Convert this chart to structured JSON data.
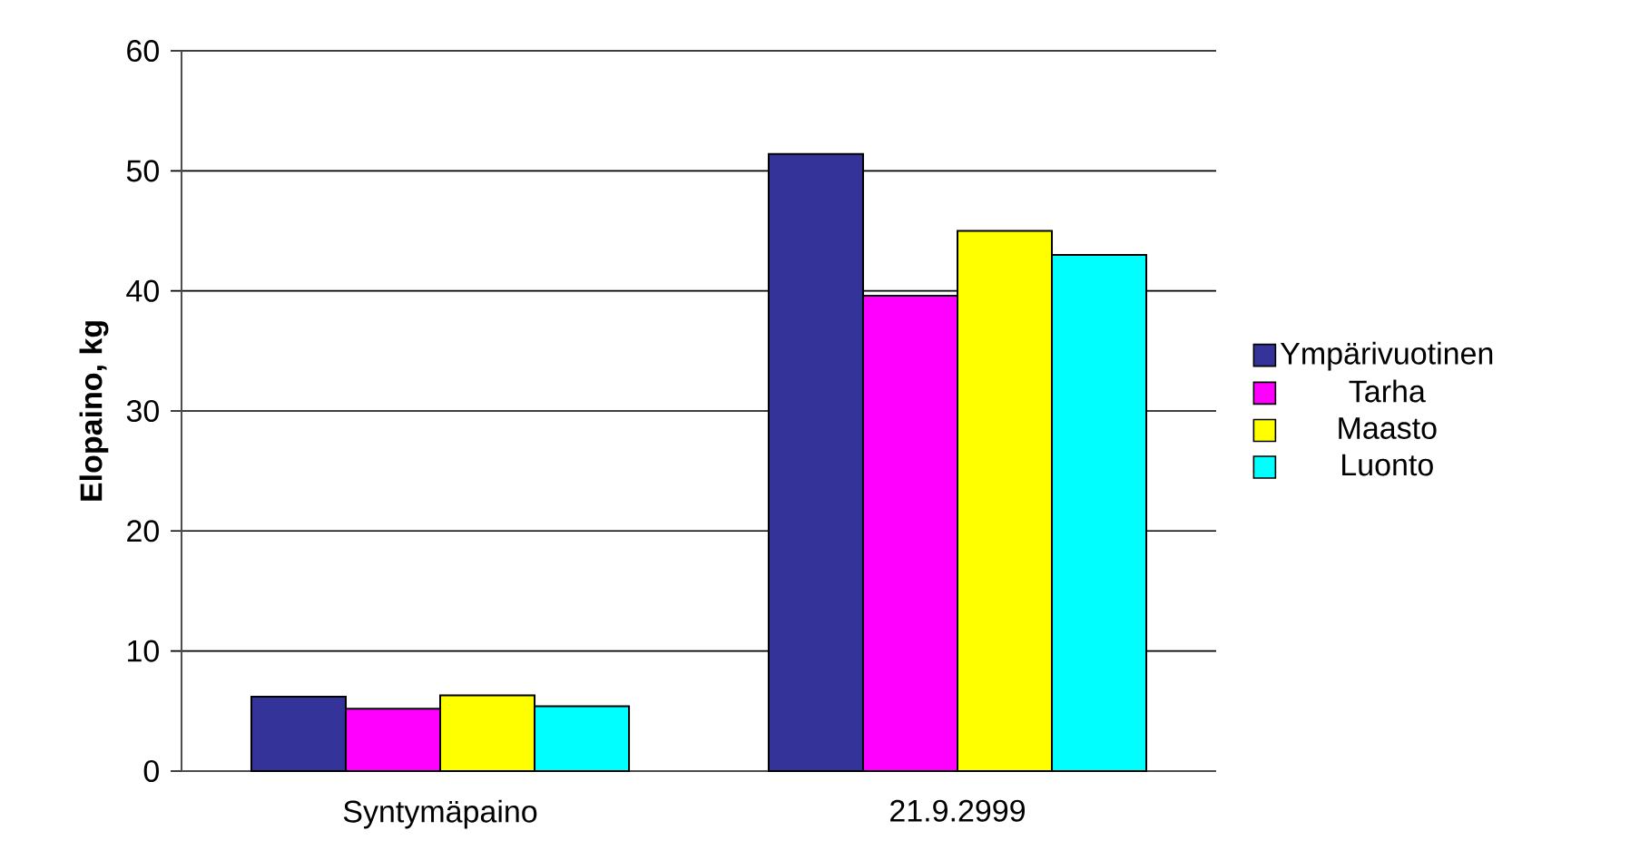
{
  "chart_data": {
    "type": "bar",
    "ylabel": "**Elopaino, kg**",
    "categories": [
      "Syntymäpaino",
      "21.9.2999"
    ],
    "series": [
      {
        "name": "Ympärivuotinen",
        "color": "#333399",
        "values": [
          6.2,
          51.4
        ]
      },
      {
        "name": "Tarha",
        "color": "#ff00ff",
        "values": [
          5.2,
          39.6
        ]
      },
      {
        "name": "Maasto",
        "color": "#ffff00",
        "values": [
          6.3,
          45.0
        ]
      },
      {
        "name": "Luonto",
        "color": "#00ffff",
        "values": [
          5.4,
          43.0
        ]
      }
    ],
    "ylim": [
      0,
      60
    ],
    "yticks": [
      0,
      10,
      20,
      30,
      40,
      50,
      60
    ],
    "grid": "y",
    "legend": "right"
  }
}
